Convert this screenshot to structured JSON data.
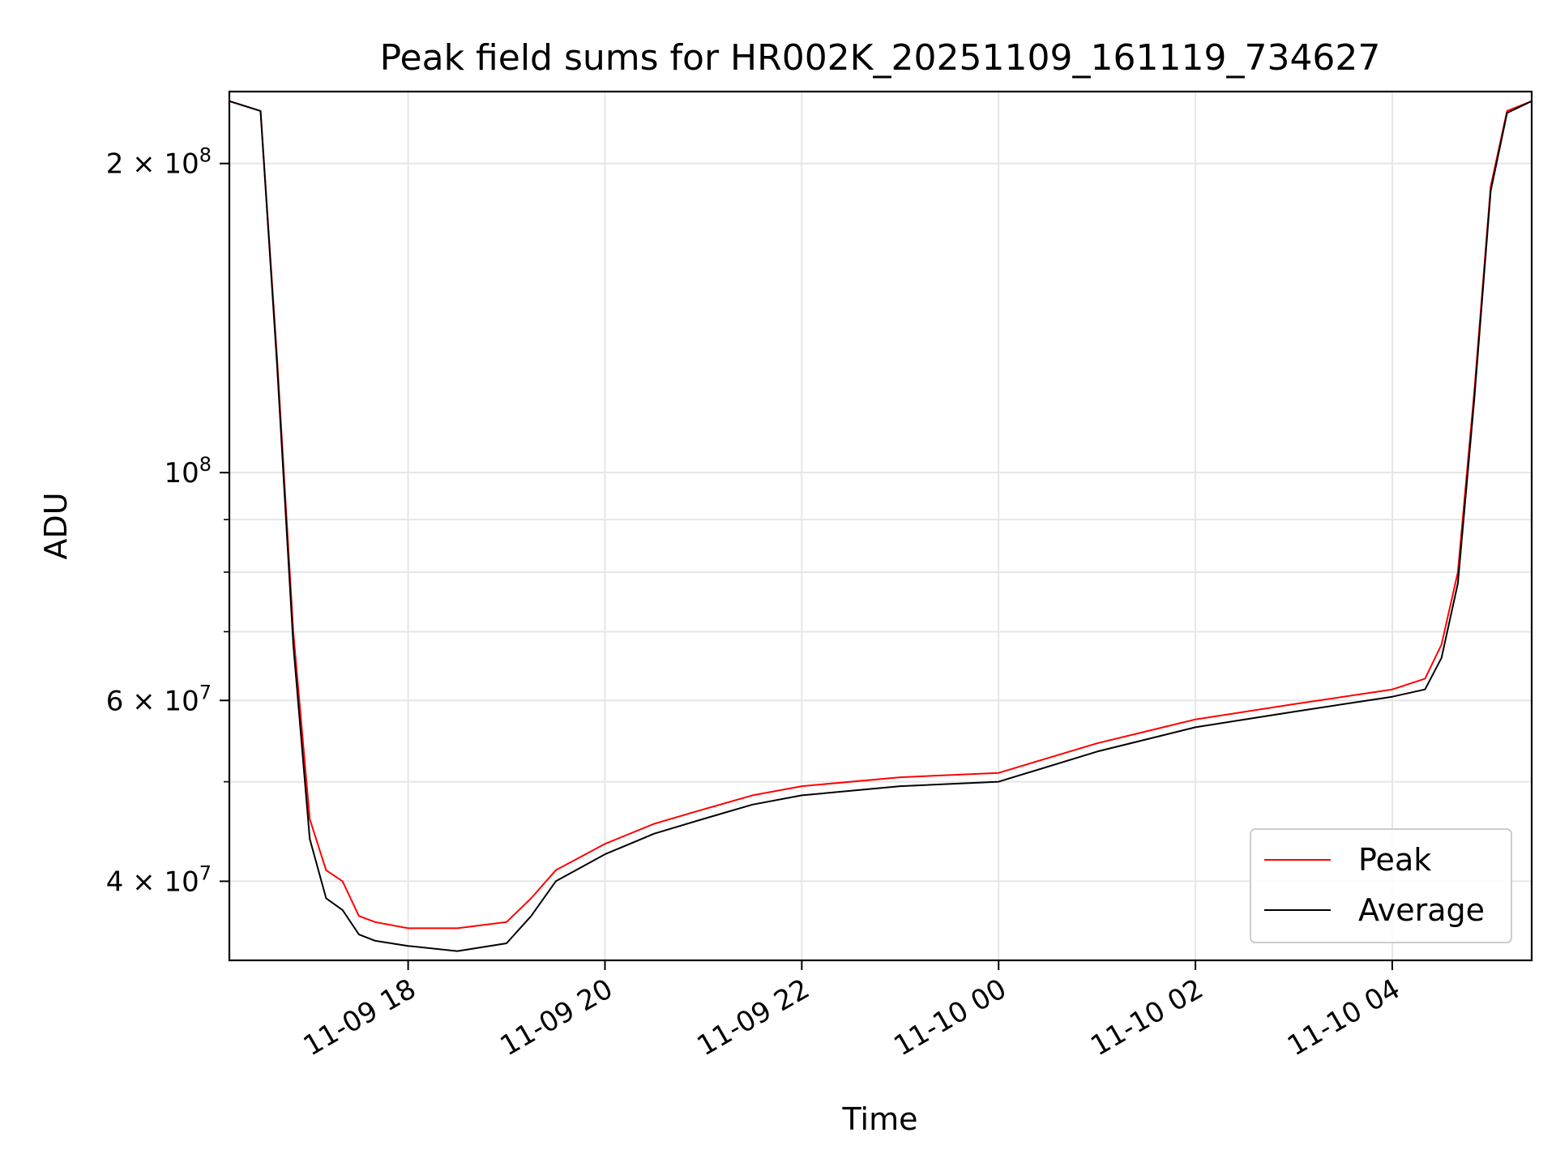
{
  "chart_data": {
    "type": "line",
    "title": "Peak field sums for HR002K_20251109_161119_734627",
    "xlabel": "Time",
    "ylabel": "ADU",
    "yscale": "log",
    "grid": true,
    "legend_position": "lower-right",
    "xlim": [
      "2025-11-09 16:11",
      "2025-11-10 05:25"
    ],
    "ylim": [
      33500000,
      235000000
    ],
    "x_ticks": [
      {
        "value": "2025-11-09 18:00",
        "label": "11-09 18"
      },
      {
        "value": "2025-11-09 20:00",
        "label": "11-09 20"
      },
      {
        "value": "2025-11-09 22:00",
        "label": "11-09 22"
      },
      {
        "value": "2025-11-10 00:00",
        "label": "11-10 00"
      },
      {
        "value": "2025-11-10 02:00",
        "label": "11-10 02"
      },
      {
        "value": "2025-11-10 04:00",
        "label": "11-10 04"
      }
    ],
    "y_ticks": [
      {
        "value": 40000000,
        "label_base": "4 × 10",
        "label_exp": "7"
      },
      {
        "value": 60000000,
        "label_base": "6 × 10",
        "label_exp": "7"
      },
      {
        "value": 100000000,
        "label_base": "10",
        "label_exp": "8"
      },
      {
        "value": 200000000,
        "label_base": "2 × 10",
        "label_exp": "8"
      }
    ],
    "y_minor_ticks": [
      50000000,
      70000000,
      80000000,
      90000000
    ],
    "series": [
      {
        "name": "Peak",
        "color": "#ff0000",
        "x": [
          "2025-11-09 16:11",
          "2025-11-09 16:30",
          "2025-11-09 16:40",
          "2025-11-09 16:50",
          "2025-11-09 17:00",
          "2025-11-09 17:10",
          "2025-11-09 17:20",
          "2025-11-09 17:30",
          "2025-11-09 17:40",
          "2025-11-09 18:00",
          "2025-11-09 18:30",
          "2025-11-09 19:00",
          "2025-11-09 19:15",
          "2025-11-09 19:30",
          "2025-11-09 20:00",
          "2025-11-09 20:30",
          "2025-11-09 21:00",
          "2025-11-09 21:30",
          "2025-11-09 22:00",
          "2025-11-09 23:00",
          "2025-11-10 00:00",
          "2025-11-10 01:00",
          "2025-11-10 02:00",
          "2025-11-10 03:00",
          "2025-11-10 04:00",
          "2025-11-10 04:20",
          "2025-11-10 04:30",
          "2025-11-10 04:40",
          "2025-11-10 04:50",
          "2025-11-10 05:00",
          "2025-11-10 05:10",
          "2025-11-10 05:25"
        ],
        "values": [
          230000000,
          225000000,
          130000000,
          70000000,
          46000000,
          41000000,
          40000000,
          37000000,
          36500000,
          36000000,
          36000000,
          36500000,
          38500000,
          41000000,
          43500000,
          45500000,
          47000000,
          48500000,
          49500000,
          50500000,
          51000000,
          54500000,
          57500000,
          59500000,
          61500000,
          63000000,
          68000000,
          80000000,
          120000000,
          190000000,
          225000000,
          230000000
        ]
      },
      {
        "name": "Average",
        "color": "#000000",
        "x": [
          "2025-11-09 16:11",
          "2025-11-09 16:30",
          "2025-11-09 16:40",
          "2025-11-09 16:50",
          "2025-11-09 17:00",
          "2025-11-09 17:10",
          "2025-11-09 17:20",
          "2025-11-09 17:30",
          "2025-11-09 17:40",
          "2025-11-09 18:00",
          "2025-11-09 18:30",
          "2025-11-09 19:00",
          "2025-11-09 19:15",
          "2025-11-09 19:30",
          "2025-11-09 20:00",
          "2025-11-09 20:30",
          "2025-11-09 21:00",
          "2025-11-09 21:30",
          "2025-11-09 22:00",
          "2025-11-09 23:00",
          "2025-11-10 00:00",
          "2025-11-10 01:00",
          "2025-11-10 02:00",
          "2025-11-10 03:00",
          "2025-11-10 04:00",
          "2025-11-10 04:20",
          "2025-11-10 04:30",
          "2025-11-10 04:40",
          "2025-11-10 04:50",
          "2025-11-10 05:00",
          "2025-11-10 05:10",
          "2025-11-10 05:25"
        ],
        "values": [
          230000000,
          225000000,
          128000000,
          68000000,
          44000000,
          38500000,
          37500000,
          35500000,
          35000000,
          34600000,
          34200000,
          34800000,
          37000000,
          40000000,
          42500000,
          44500000,
          46000000,
          47500000,
          48500000,
          49500000,
          50000000,
          53500000,
          56500000,
          58500000,
          60500000,
          61500000,
          66000000,
          78000000,
          118000000,
          188000000,
          224000000,
          230000000
        ]
      }
    ]
  }
}
